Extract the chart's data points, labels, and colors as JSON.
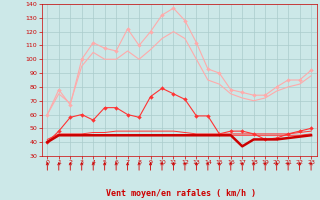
{
  "x": [
    0,
    1,
    2,
    3,
    4,
    5,
    6,
    7,
    8,
    9,
    10,
    11,
    12,
    13,
    14,
    15,
    16,
    17,
    18,
    19,
    20,
    21,
    22,
    23
  ],
  "series": [
    {
      "name": "rafales_max",
      "color": "#ffaaaa",
      "linewidth": 0.8,
      "marker": "D",
      "markersize": 2.0,
      "values": [
        60,
        78,
        67,
        100,
        112,
        108,
        106,
        122,
        110,
        120,
        132,
        137,
        128,
        112,
        93,
        90,
        78,
        76,
        74,
        74,
        80,
        85,
        85,
        92
      ]
    },
    {
      "name": "rafales_band_upper",
      "color": "#ffaaaa",
      "linewidth": 0.8,
      "marker": null,
      "markersize": 0,
      "values": [
        60,
        75,
        68,
        95,
        105,
        100,
        100,
        106,
        100,
        107,
        115,
        120,
        115,
        100,
        85,
        82,
        75,
        72,
        70,
        72,
        77,
        80,
        82,
        88
      ]
    },
    {
      "name": "vent_max",
      "color": "#ff3333",
      "linewidth": 0.8,
      "marker": "D",
      "markersize": 2.0,
      "values": [
        40,
        48,
        58,
        60,
        56,
        65,
        65,
        60,
        58,
        73,
        79,
        75,
        71,
        59,
        59,
        46,
        48,
        48,
        46,
        42,
        43,
        46,
        48,
        50
      ]
    },
    {
      "name": "vent_band_upper",
      "color": "#ff3333",
      "linewidth": 0.7,
      "marker": null,
      "markersize": 0,
      "values": [
        42,
        46,
        46,
        46,
        47,
        47,
        48,
        48,
        48,
        48,
        48,
        48,
        47,
        46,
        46,
        46,
        46,
        46,
        46,
        46,
        46,
        46,
        47,
        48
      ]
    },
    {
      "name": "vent_band_lower",
      "color": "#ff3333",
      "linewidth": 0.7,
      "marker": null,
      "markersize": 0,
      "values": [
        41,
        45,
        45,
        45,
        45,
        45,
        45,
        45,
        45,
        45,
        45,
        45,
        45,
        45,
        45,
        45,
        45,
        45,
        45,
        45,
        45,
        45,
        45,
        46
      ]
    },
    {
      "name": "vent_min",
      "color": "#cc0000",
      "linewidth": 1.8,
      "marker": null,
      "markersize": 0,
      "values": [
        40,
        45,
        45,
        45,
        45,
        45,
        45,
        45,
        45,
        45,
        45,
        45,
        45,
        45,
        45,
        45,
        45,
        37,
        42,
        42,
        42,
        43,
        44,
        45
      ]
    }
  ],
  "xlabel": "Vent moyen/en rafales ( km/h )",
  "ylim": [
    30,
    140
  ],
  "yticks": [
    30,
    40,
    50,
    60,
    70,
    80,
    90,
    100,
    110,
    120,
    130,
    140
  ],
  "xlim": [
    -0.5,
    23.5
  ],
  "xticks": [
    0,
    1,
    2,
    3,
    4,
    5,
    6,
    7,
    8,
    9,
    10,
    11,
    12,
    13,
    14,
    15,
    16,
    17,
    18,
    19,
    20,
    21,
    22,
    23
  ],
  "bg_color": "#cce8e8",
  "grid_color": "#aacccc",
  "tick_color": "#cc0000",
  "label_color": "#cc0000",
  "arrow_color": "#cc0000"
}
